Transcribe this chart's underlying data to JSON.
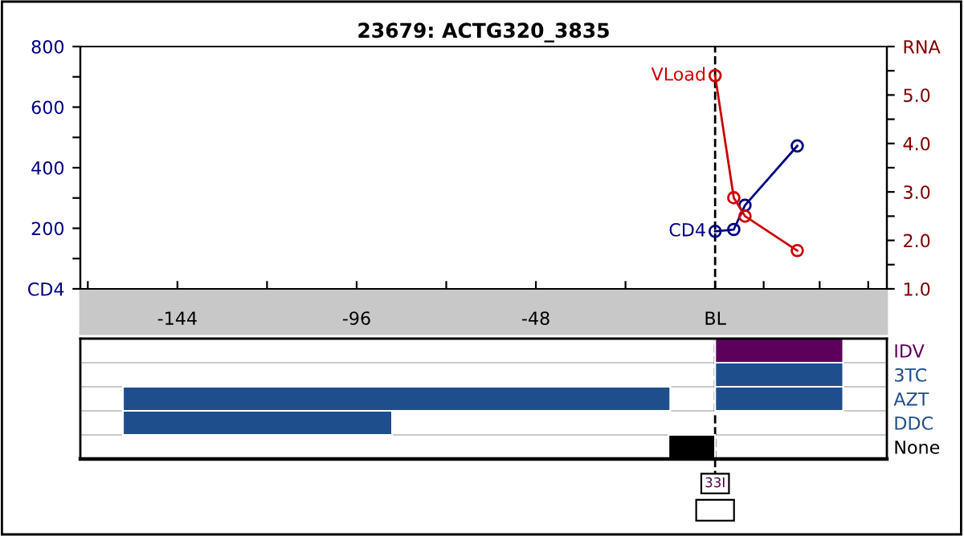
{
  "chart_data": [
    {
      "type": "line",
      "title": "23679: ACTG320_3835",
      "marker": "circle",
      "line_style": "solid",
      "grid": false,
      "legend": false,
      "xlim": [
        -170,
        46
      ],
      "xticks": [
        {
          "value": -168,
          "label": null
        },
        -144,
        {
          "value": -120,
          "label": null
        },
        -96,
        {
          "value": -72,
          "label": null
        },
        -48,
        {
          "value": -24,
          "label": null
        },
        {
          "value": 0,
          "label": "BL"
        },
        {
          "value": 13,
          "label": null
        },
        {
          "value": 28,
          "label": null
        },
        {
          "value": 41,
          "label": null
        }
      ],
      "ylim": [
        0,
        800
      ],
      "yticks": [
        {
          "value": 0,
          "label": "CD4"
        },
        {
          "value": 100,
          "label": null
        },
        200,
        {
          "value": 300,
          "label": null
        },
        400,
        {
          "value": 500,
          "label": null
        },
        600,
        {
          "value": 700,
          "label": null
        },
        800
      ],
      "y2lim": [
        1,
        6
      ],
      "y2ticks": [
        {
          "value": 1,
          "label": "1.0"
        },
        {
          "value": 1.5,
          "label": null
        },
        {
          "value": 2,
          "label": "2.0"
        },
        {
          "value": 2.5,
          "label": null
        },
        {
          "value": 3,
          "label": "3.0"
        },
        {
          "value": 3.5,
          "label": null
        },
        {
          "value": 4,
          "label": "4.0"
        },
        {
          "value": 4.5,
          "label": null
        },
        {
          "value": 5,
          "label": "5.0"
        },
        {
          "value": 5.5,
          "label": null
        },
        {
          "value": 6,
          "label": "RNA"
        }
      ],
      "ref_lines": [
        {
          "axis": "x",
          "value": 0,
          "line_style": "dashed",
          "color": "#000000"
        }
      ],
      "series": [
        {
          "name": "CD4",
          "color": "#000080",
          "x": [
            0,
            5,
            8,
            22
          ],
          "values": [
            190,
            196,
            276,
            472
          ]
        },
        {
          "name": "VLoad",
          "color": "#cc0000",
          "axis": "y2",
          "x": [
            0,
            5,
            8,
            22
          ],
          "values": [
            5.4,
            2.88,
            2.5,
            1.79
          ]
        }
      ]
    },
    {
      "type": "bar",
      "orientation": "horizontal",
      "tick_labels": "y",
      "grid": "y",
      "xlim": [
        -170,
        46
      ],
      "categories": [
        "IDV",
        "3TC",
        "AZT",
        "DDC",
        "None"
      ],
      "series": [
        {
          "values": [
            34.3,
            34.3,
            34.3,
            72.1,
            12.5
          ],
          "base": [
            0,
            0,
            0,
            -158.6,
            -12.5
          ],
          "colors": [
            "#5c005c",
            "#1f4e8c",
            "#1f4e8c",
            "#1f4e8c",
            "#000000"
          ]
        },
        {
          "values": [
            null,
            null,
            146.6,
            null,
            null
          ],
          "base": [
            null,
            null,
            -158.6,
            null,
            null
          ],
          "colors": [
            "#1f4e8c",
            "#1f4e8c",
            "#1f4e8c",
            "#1f4e8c",
            "#1f4e8c"
          ]
        }
      ],
      "ref_lines": [
        {
          "axis": "x",
          "value": 0,
          "line_style": "dashed",
          "color": "#000000"
        }
      ],
      "annotations": [
        "33I"
      ]
    }
  ]
}
